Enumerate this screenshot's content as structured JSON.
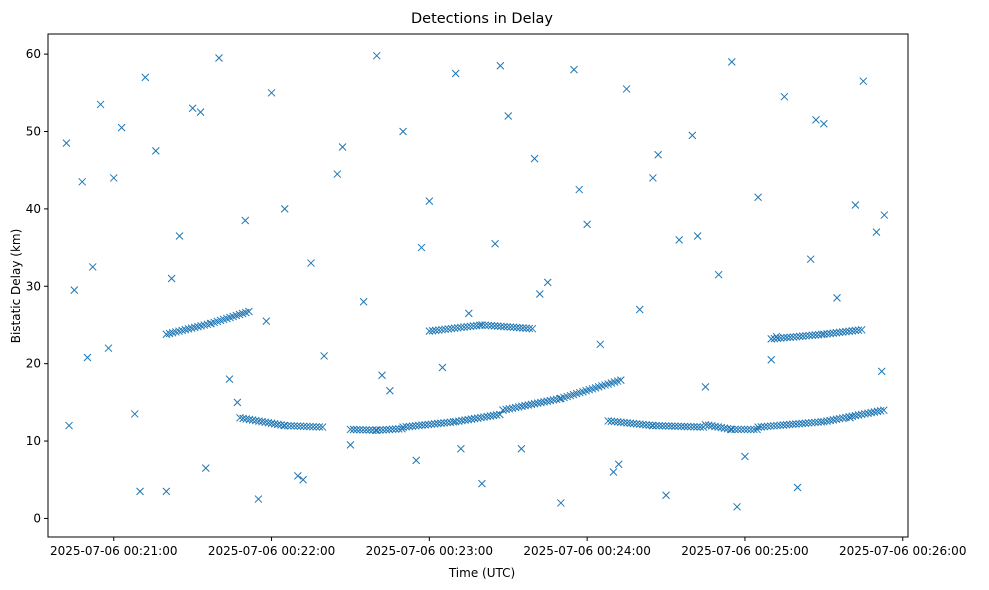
{
  "chart_data": {
    "type": "scatter",
    "title": "Detections in Delay",
    "xlabel": "Time (UTC)",
    "ylabel": "Bistatic Delay (km)",
    "marker": "x",
    "color": "#1f77b4",
    "grid": false,
    "legend": "none",
    "x_range": [
      "2025-07-06 00:20:35",
      "2025-07-06 00:26:02"
    ],
    "ylim": [
      -2.4,
      62.6
    ],
    "x_ticks": [
      "2025-07-06 00:21:00",
      "2025-07-06 00:22:00",
      "2025-07-06 00:23:00",
      "2025-07-06 00:24:00",
      "2025-07-06 00:25:00",
      "2025-07-06 00:26:00"
    ],
    "y_ticks": [
      "0",
      "10",
      "20",
      "30",
      "40",
      "50",
      "60"
    ],
    "track_segments": [
      {
        "x": [
          "2025-07-06 00:21:20",
          "2025-07-06 00:21:37",
          "2025-07-06 00:21:52"
        ],
        "y": [
          23.8,
          25.2,
          26.8
        ]
      },
      {
        "x": [
          "2025-07-06 00:21:48",
          "2025-07-06 00:22:05",
          "2025-07-06 00:22:20"
        ],
        "y": [
          13.0,
          12.0,
          11.8
        ]
      },
      {
        "x": [
          "2025-07-06 00:22:30",
          "2025-07-06 00:22:40",
          "2025-07-06 00:22:50"
        ],
        "y": [
          11.5,
          11.4,
          11.6
        ]
      },
      {
        "x": [
          "2025-07-06 00:22:50",
          "2025-07-06 00:23:10",
          "2025-07-06 00:23:28"
        ],
        "y": [
          11.8,
          12.5,
          13.5
        ]
      },
      {
        "x": [
          "2025-07-06 00:23:28",
          "2025-07-06 00:23:50",
          "2025-07-06 00:24:14"
        ],
        "y": [
          14.0,
          15.5,
          18.0
        ]
      },
      {
        "x": [
          "2025-07-06 00:23:00",
          "2025-07-06 00:23:20",
          "2025-07-06 00:23:40"
        ],
        "y": [
          24.2,
          25.0,
          24.5
        ]
      },
      {
        "x": [
          "2025-07-06 00:24:08",
          "2025-07-06 00:24:25",
          "2025-07-06 00:24:45"
        ],
        "y": [
          12.6,
          12.0,
          11.8
        ]
      },
      {
        "x": [
          "2025-07-06 00:24:45",
          "2025-07-06 00:24:55",
          "2025-07-06 00:25:05"
        ],
        "y": [
          12.1,
          11.5,
          11.5
        ]
      },
      {
        "x": [
          "2025-07-06 00:25:05",
          "2025-07-06 00:25:30",
          "2025-07-06 00:25:53"
        ],
        "y": [
          11.8,
          12.5,
          14.0
        ]
      },
      {
        "x": [
          "2025-07-06 00:25:10",
          "2025-07-06 00:25:30",
          "2025-07-06 00:25:45"
        ],
        "y": [
          23.2,
          23.8,
          24.4
        ]
      }
    ],
    "scattered_points": {
      "x": [
        "2025-07-06 00:20:42",
        "2025-07-06 00:20:45",
        "2025-07-06 00:20:48",
        "2025-07-06 00:20:52",
        "2025-07-06 00:20:55",
        "2025-07-06 00:20:58",
        "2025-07-06 00:21:03",
        "2025-07-06 00:21:08",
        "2025-07-06 00:21:12",
        "2025-07-06 00:21:16",
        "2025-07-06 00:21:20",
        "2025-07-06 00:21:25",
        "2025-07-06 00:21:30",
        "2025-07-06 00:21:35",
        "2025-07-06 00:21:40",
        "2025-07-06 00:21:44",
        "2025-07-06 00:21:50",
        "2025-07-06 00:21:55",
        "2025-07-06 00:22:00",
        "2025-07-06 00:22:05",
        "2025-07-06 00:22:10",
        "2025-07-06 00:22:15",
        "2025-07-06 00:22:20",
        "2025-07-06 00:22:25",
        "2025-07-06 00:22:30",
        "2025-07-06 00:22:35",
        "2025-07-06 00:22:40",
        "2025-07-06 00:22:45",
        "2025-07-06 00:22:50",
        "2025-07-06 00:22:55",
        "2025-07-06 00:23:00",
        "2025-07-06 00:23:05",
        "2025-07-06 00:23:10",
        "2025-07-06 00:23:15",
        "2025-07-06 00:23:20",
        "2025-07-06 00:23:25",
        "2025-07-06 00:23:30",
        "2025-07-06 00:23:35",
        "2025-07-06 00:23:40",
        "2025-07-06 00:23:45",
        "2025-07-06 00:23:50",
        "2025-07-06 00:23:55",
        "2025-07-06 00:24:00",
        "2025-07-06 00:24:05",
        "2025-07-06 00:24:10",
        "2025-07-06 00:24:15",
        "2025-07-06 00:24:20",
        "2025-07-06 00:24:25",
        "2025-07-06 00:24:30",
        "2025-07-06 00:24:35",
        "2025-07-06 00:24:40",
        "2025-07-06 00:24:45",
        "2025-07-06 00:24:50",
        "2025-07-06 00:24:55",
        "2025-07-06 00:25:00",
        "2025-07-06 00:25:05",
        "2025-07-06 00:25:10",
        "2025-07-06 00:25:15",
        "2025-07-06 00:25:20",
        "2025-07-06 00:25:25",
        "2025-07-06 00:25:30",
        "2025-07-06 00:25:35",
        "2025-07-06 00:25:40",
        "2025-07-06 00:25:45",
        "2025-07-06 00:25:50",
        "2025-07-06 00:25:53",
        "2025-07-06 00:20:43",
        "2025-07-06 00:20:50",
        "2025-07-06 00:21:00",
        "2025-07-06 00:21:10",
        "2025-07-06 00:21:22",
        "2025-07-06 00:21:33",
        "2025-07-06 00:21:47",
        "2025-07-06 00:21:58",
        "2025-07-06 00:22:12",
        "2025-07-06 00:22:27",
        "2025-07-06 00:22:42",
        "2025-07-06 00:22:57",
        "2025-07-06 00:23:12",
        "2025-07-06 00:23:27",
        "2025-07-06 00:23:42",
        "2025-07-06 00:23:57",
        "2025-07-06 00:24:12",
        "2025-07-06 00:24:27",
        "2025-07-06 00:24:42",
        "2025-07-06 00:24:57",
        "2025-07-06 00:25:12",
        "2025-07-06 00:25:27",
        "2025-07-06 00:25:42",
        "2025-07-06 00:25:52"
      ],
      "y": [
        48.5,
        29.5,
        43.5,
        32.5,
        53.5,
        22.0,
        50.5,
        13.5,
        57.0,
        47.5,
        3.5,
        36.5,
        53.0,
        6.5,
        59.5,
        18.0,
        38.5,
        2.5,
        55.0,
        40.0,
        5.5,
        33.0,
        21.0,
        44.5,
        9.5,
        28.0,
        59.8,
        16.5,
        50.0,
        7.5,
        41.0,
        19.5,
        57.5,
        26.5,
        4.5,
        35.5,
        52.0,
        9.0,
        46.5,
        30.5,
        2.0,
        58.0,
        38.0,
        22.5,
        6.0,
        55.5,
        27.0,
        44.0,
        3.0,
        36.0,
        49.5,
        17.0,
        31.5,
        59.0,
        8.0,
        41.5,
        20.5,
        54.5,
        4.0,
        33.5,
        51.0,
        28.5,
        13.0,
        56.5,
        37.0,
        39.2,
        12.0,
        20.8,
        44.0,
        3.5,
        31.0,
        52.5,
        15.0,
        25.5,
        5.0,
        48.0,
        18.5,
        35.0,
        9.0,
        58.5,
        29.0,
        42.5,
        7.0,
        47.0,
        36.5,
        1.5,
        23.5,
        51.5,
        40.5,
        19.0
      ]
    }
  }
}
